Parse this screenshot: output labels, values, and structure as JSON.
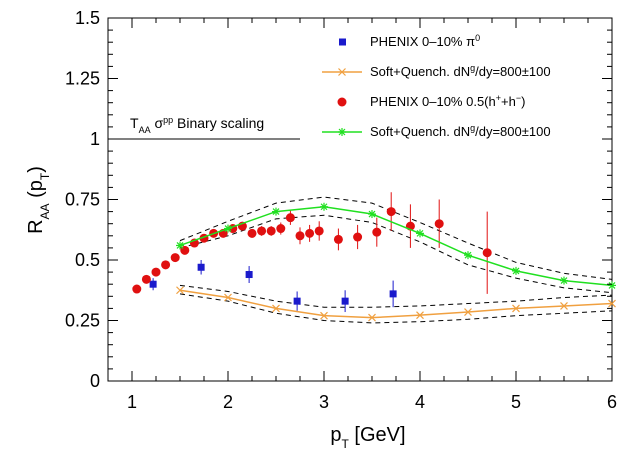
{
  "chart_data": {
    "type": "scatter",
    "x_axis": {
      "label_main": "p",
      "label_sub": "T",
      "label_unit": " [GeV]",
      "ticks": [
        "1",
        "2",
        "3",
        "4",
        "5",
        "6"
      ],
      "range": [
        0.75,
        6
      ]
    },
    "y_axis": {
      "label_main": "R",
      "label_sub": "AA",
      "label_paren": " (p",
      "label_paren_sub": "T",
      "label_close": ")",
      "ticks": [
        "0",
        "0.25",
        "0.5",
        "0.75",
        "1",
        "1.25",
        "1.5"
      ],
      "range": [
        0,
        1.5
      ]
    },
    "annotation": {
      "T": "T",
      "T_sub": "AA",
      "sigma": " σ",
      "sigma_sup": "pp",
      "rest": " Binary scaling",
      "y": 1
    },
    "legend": [
      {
        "text": "PHENIX 0–10% π",
        "sup": "0",
        "marker": "square",
        "color": "#1a1acc"
      },
      {
        "text": "Soft+Quench. dN",
        "sup": "g",
        "after": "/dy=800±100",
        "marker": "cross",
        "color": "#f0a040"
      },
      {
        "text": "PHENIX 0–10% 0.5(h",
        "sup": "+",
        "after": "+h",
        "sup2": "−",
        "after2": ")",
        "marker": "circle",
        "color": "#e01010"
      },
      {
        "text": "Soft+Quench. dN",
        "sup": "g",
        "after": "/dy=800±100",
        "marker": "star",
        "color": "#20e020"
      }
    ],
    "series": [
      {
        "name": "PHENIX 0–10% π0",
        "marker": "square",
        "color": "#1a1acc",
        "x": [
          1.22,
          1.72,
          2.22,
          2.72,
          3.22,
          3.72
        ],
        "y": [
          0.4,
          0.47,
          0.44,
          0.33,
          0.33,
          0.36
        ],
        "err": [
          0.025,
          0.03,
          0.035,
          0.04,
          0.045,
          0.055
        ]
      },
      {
        "name": "Soft+Quench. π0",
        "marker": "cross",
        "color": "#f0a040",
        "x": [
          1.5,
          2.0,
          2.5,
          3.0,
          3.5,
          4.0,
          4.5,
          5.0,
          5.5,
          6.0
        ],
        "y": [
          0.375,
          0.345,
          0.3,
          0.27,
          0.262,
          0.272,
          0.285,
          0.3,
          0.31,
          0.32
        ],
        "band_upper": [
          0.395,
          0.37,
          0.33,
          0.305,
          0.305,
          0.31,
          0.32,
          0.33,
          0.345,
          0.355
        ],
        "band_lower": [
          0.36,
          0.33,
          0.28,
          0.25,
          0.24,
          0.245,
          0.255,
          0.27,
          0.28,
          0.29
        ]
      },
      {
        "name": "PHENIX 0–10% 0.5(h+ + h−)",
        "marker": "circle",
        "color": "#e01010",
        "x": [
          1.05,
          1.15,
          1.25,
          1.35,
          1.45,
          1.55,
          1.65,
          1.75,
          1.85,
          1.95,
          2.05,
          2.15,
          2.25,
          2.35,
          2.45,
          2.55,
          2.65,
          2.75,
          2.85,
          2.95,
          3.15,
          3.35,
          3.55,
          3.7,
          3.9,
          4.2,
          4.7
        ],
        "y": [
          0.38,
          0.42,
          0.45,
          0.48,
          0.51,
          0.54,
          0.57,
          0.59,
          0.61,
          0.61,
          0.63,
          0.64,
          0.61,
          0.62,
          0.62,
          0.63,
          0.675,
          0.6,
          0.61,
          0.62,
          0.585,
          0.595,
          0.615,
          0.7,
          0.64,
          0.65,
          0.53
        ],
        "err": [
          0.01,
          0.01,
          0.01,
          0.01,
          0.01,
          0.01,
          0.01,
          0.012,
          0.012,
          0.012,
          0.015,
          0.015,
          0.018,
          0.02,
          0.02,
          0.025,
          0.03,
          0.035,
          0.035,
          0.04,
          0.045,
          0.05,
          0.06,
          0.08,
          0.09,
          0.1,
          0.17
        ]
      },
      {
        "name": "Soft+Quench. h",
        "marker": "star",
        "color": "#20e020",
        "x": [
          1.5,
          2.0,
          2.5,
          3.0,
          3.5,
          4.0,
          4.5,
          5.0,
          5.5,
          6.0
        ],
        "y": [
          0.56,
          0.63,
          0.7,
          0.72,
          0.69,
          0.61,
          0.52,
          0.455,
          0.415,
          0.395
        ],
        "band_upper": [
          0.58,
          0.66,
          0.735,
          0.76,
          0.735,
          0.655,
          0.57,
          0.49,
          0.445,
          0.42
        ],
        "band_lower": [
          0.55,
          0.6,
          0.67,
          0.685,
          0.655,
          0.575,
          0.48,
          0.425,
          0.385,
          0.365
        ]
      }
    ]
  }
}
